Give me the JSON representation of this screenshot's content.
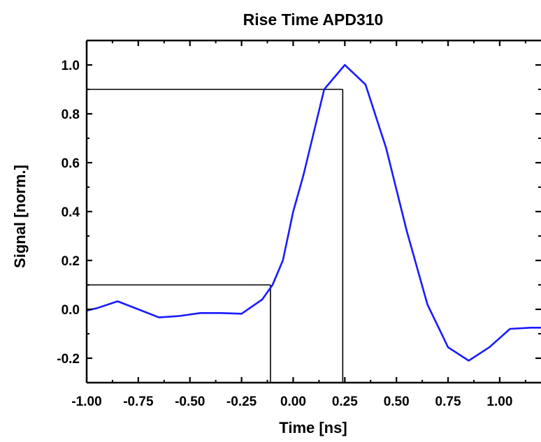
{
  "chart_data": {
    "type": "line",
    "title": "Rise Time APD310",
    "xlabel": "Time [ns]",
    "ylabel": "Signal [norm.]",
    "xlim": [
      -1.0,
      1.2
    ],
    "ylim": [
      -0.3,
      1.1
    ],
    "x_ticks": [
      -1.0,
      -0.75,
      -0.5,
      -0.25,
      0.0,
      0.25,
      0.5,
      0.75,
      1.0
    ],
    "x_tick_labels": [
      "-1.00",
      "-0.75",
      "-0.50",
      "-0.25",
      "0.00",
      "0.25",
      "0.50",
      "0.75",
      "1.00"
    ],
    "y_ticks": [
      -0.2,
      0.0,
      0.2,
      0.4,
      0.6,
      0.8,
      1.0
    ],
    "y_tick_labels": [
      "-0.2",
      "0.0",
      "0.2",
      "0.4",
      "0.6",
      "0.8",
      "1.0"
    ],
    "grid": false,
    "legend": false,
    "series": [
      {
        "color": "#1a1aff",
        "x": [
          -1.0,
          -0.95,
          -0.85,
          -0.75,
          -0.65,
          -0.55,
          -0.45,
          -0.35,
          -0.25,
          -0.15,
          -0.1,
          -0.05,
          0.0,
          0.05,
          0.15,
          0.25,
          0.35,
          0.45,
          0.55,
          0.65,
          0.75,
          0.85,
          0.95,
          1.05,
          1.15,
          1.2
        ],
        "y": [
          -0.005,
          0.005,
          0.033,
          0.0,
          -0.033,
          -0.027,
          -0.015,
          -0.015,
          -0.018,
          0.04,
          0.1,
          0.2,
          0.4,
          0.55,
          0.9,
          1.0,
          0.92,
          0.66,
          0.32,
          0.02,
          -0.155,
          -0.21,
          -0.155,
          -0.08,
          -0.075,
          -0.075
        ]
      }
    ],
    "annotations": {
      "color": "#000000",
      "markers": [
        {
          "level": 0.1,
          "time": -0.11
        },
        {
          "level": 0.9,
          "time": 0.24
        }
      ]
    }
  }
}
